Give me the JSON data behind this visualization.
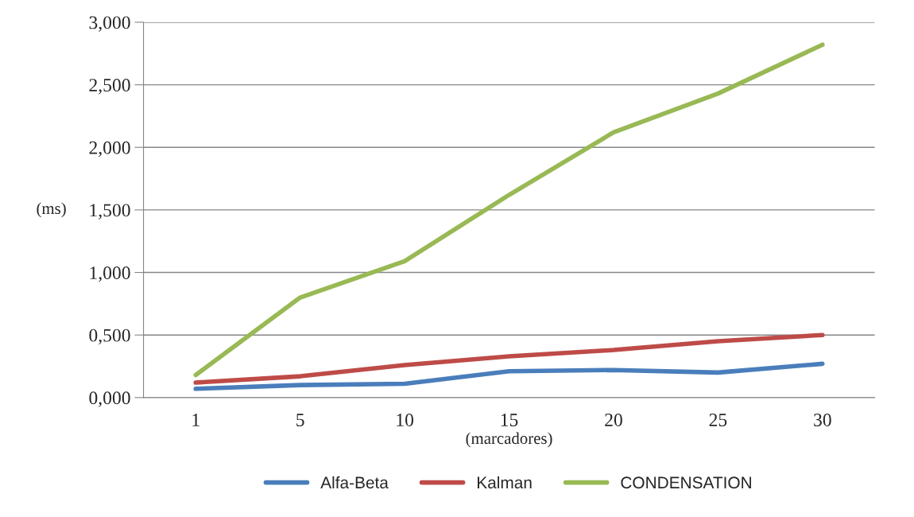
{
  "chart_data": {
    "type": "line",
    "xlabel": "(marcadores)",
    "ylabel": "(ms)",
    "categories": [
      "1",
      "5",
      "10",
      "15",
      "20",
      "25",
      "30"
    ],
    "series": [
      {
        "name": "Alfa-Beta",
        "color": "#4a7ebb",
        "values": [
          0.07,
          0.1,
          0.11,
          0.21,
          0.22,
          0.2,
          0.27
        ]
      },
      {
        "name": "Kalman",
        "color": "#be4b48",
        "values": [
          0.12,
          0.17,
          0.26,
          0.33,
          0.38,
          0.45,
          0.5
        ]
      },
      {
        "name": "CONDENSATION",
        "color": "#98b954",
        "values": [
          0.18,
          0.8,
          1.09,
          1.62,
          2.12,
          2.43,
          2.82
        ]
      }
    ],
    "ylim": [
      0,
      3
    ],
    "yticks": [
      {
        "value": 0,
        "label": "0,000"
      },
      {
        "value": 0.5,
        "label": "0,500"
      },
      {
        "value": 1,
        "label": "1,000"
      },
      {
        "value": 1.5,
        "label": "1,500"
      },
      {
        "value": 2,
        "label": "2,000"
      },
      {
        "value": 2.5,
        "label": "2,500"
      },
      {
        "value": 3,
        "label": "3,000"
      }
    ],
    "grid": "y",
    "legend": "bottom",
    "marker": "none",
    "line_style": "solid"
  }
}
